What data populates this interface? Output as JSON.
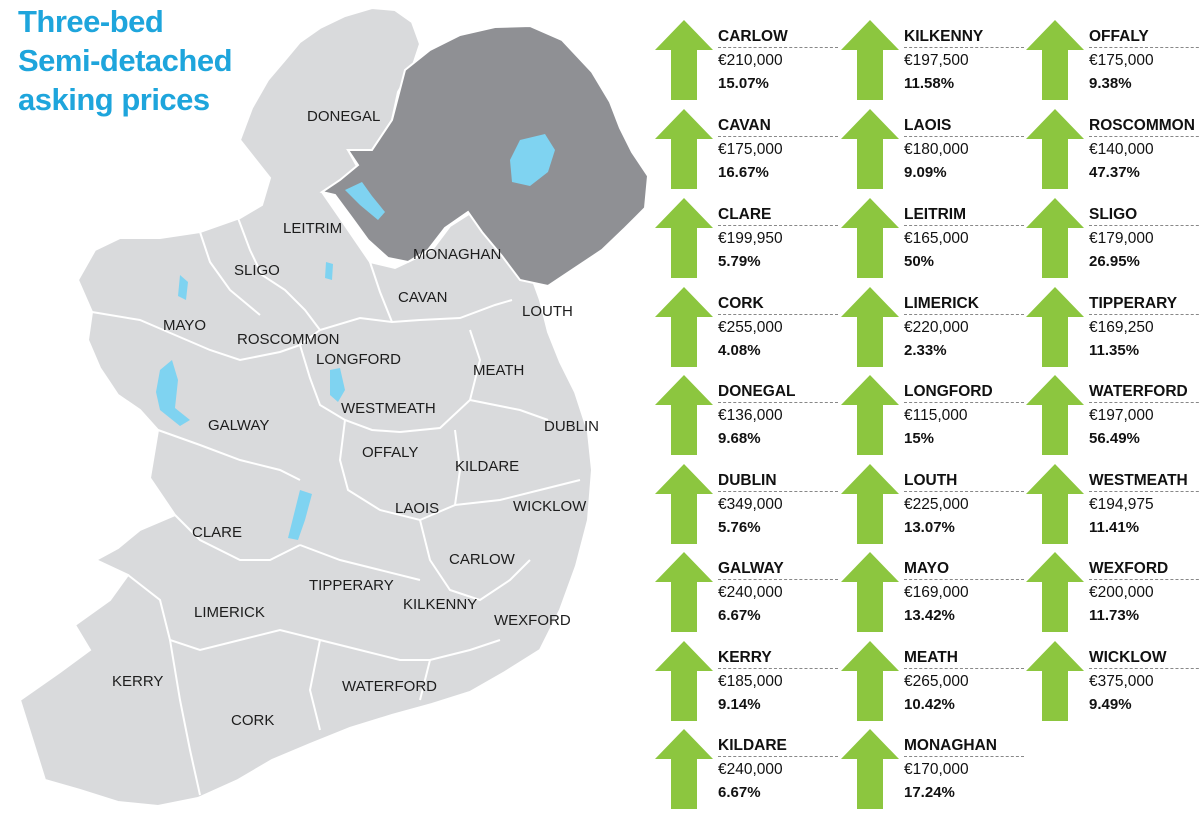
{
  "title": {
    "line1": "Three-bed",
    "line2": "Semi-detached",
    "line3": "asking prices"
  },
  "colors": {
    "title": "#1ea5dc",
    "arrow": "#8cc63f",
    "republic_fill": "#d9dadc",
    "northern_ireland_fill": "#8f9094",
    "lakes": "#7fd3f1",
    "borders": "#ffffff"
  },
  "map_labels": [
    "DONEGAL",
    "LEITRIM",
    "MONAGHAN",
    "SLIGO",
    "CAVAN",
    "LOUTH",
    "MAYO",
    "ROSCOMMON",
    "LONGFORD",
    "MEATH",
    "WESTMEATH",
    "GALWAY",
    "DUBLIN",
    "OFFALY",
    "KILDARE",
    "LAOIS",
    "WICKLOW",
    "CLARE",
    "CARLOW",
    "TIPPERARY",
    "LIMERICK",
    "KILKENNY",
    "WEXFORD",
    "KERRY",
    "WATERFORD",
    "CORK"
  ],
  "counties": [
    {
      "name": "CARLOW",
      "price": "€210,000",
      "change": "15.07%",
      "icon": "up-arrow-icon"
    },
    {
      "name": "CAVAN",
      "price": "€175,000",
      "change": "16.67%",
      "icon": "up-arrow-icon"
    },
    {
      "name": "CLARE",
      "price": "€199,950",
      "change": "5.79%",
      "icon": "up-arrow-icon"
    },
    {
      "name": "CORK",
      "price": "€255,000",
      "change": "4.08%",
      "icon": "up-arrow-icon"
    },
    {
      "name": "DONEGAL",
      "price": "€136,000",
      "change": "9.68%",
      "icon": "up-arrow-icon"
    },
    {
      "name": "DUBLIN",
      "price": "€349,000",
      "change": "5.76%",
      "icon": "up-arrow-icon"
    },
    {
      "name": "GALWAY",
      "price": "€240,000",
      "change": "6.67%",
      "icon": "up-arrow-icon"
    },
    {
      "name": "KERRY",
      "price": "€185,000",
      "change": "9.14%",
      "icon": "up-arrow-icon"
    },
    {
      "name": "KILDARE",
      "price": "€240,000",
      "change": "6.67%",
      "icon": "up-arrow-icon"
    },
    {
      "name": "KILKENNY",
      "price": "€197,500",
      "change": "11.58%",
      "icon": "up-arrow-icon"
    },
    {
      "name": "LAOIS",
      "price": "€180,000",
      "change": "9.09%",
      "icon": "up-arrow-icon"
    },
    {
      "name": "LEITRIM",
      "price": "€165,000",
      "change": "50%",
      "icon": "up-arrow-icon"
    },
    {
      "name": "LIMERICK",
      "price": "€220,000",
      "change": "2.33%",
      "icon": "up-arrow-icon"
    },
    {
      "name": "LONGFORD",
      "price": "€115,000",
      "change": "15%",
      "icon": "up-arrow-icon"
    },
    {
      "name": "LOUTH",
      "price": "€225,000",
      "change": "13.07%",
      "icon": "up-arrow-icon"
    },
    {
      "name": "MAYO",
      "price": "€169,000",
      "change": "13.42%",
      "icon": "up-arrow-icon"
    },
    {
      "name": "MEATH",
      "price": "€265,000",
      "change": "10.42%",
      "icon": "up-arrow-icon"
    },
    {
      "name": "MONAGHAN",
      "price": "€170,000",
      "change": "17.24%",
      "icon": "up-arrow-icon"
    },
    {
      "name": "OFFALY",
      "price": "€175,000",
      "change": "9.38%",
      "icon": "up-arrow-icon"
    },
    {
      "name": "ROSCOMMON",
      "price": "€140,000",
      "change": "47.37%",
      "icon": "up-arrow-icon"
    },
    {
      "name": "SLIGO",
      "price": "€179,000",
      "change": "26.95%",
      "icon": "up-arrow-icon"
    },
    {
      "name": "TIPPERARY",
      "price": "€169,250",
      "change": "11.35%",
      "icon": "up-arrow-icon"
    },
    {
      "name": "WATERFORD",
      "price": "€197,000",
      "change": "56.49%",
      "icon": "up-arrow-icon"
    },
    {
      "name": "WESTMEATH",
      "price": "€194,975",
      "change": "11.41%",
      "icon": "up-arrow-icon"
    },
    {
      "name": "WEXFORD",
      "price": "€200,000",
      "change": "11.73%",
      "icon": "up-arrow-icon"
    },
    {
      "name": "WICKLOW",
      "price": "€375,000",
      "change": "9.49%",
      "icon": "up-arrow-icon"
    }
  ]
}
